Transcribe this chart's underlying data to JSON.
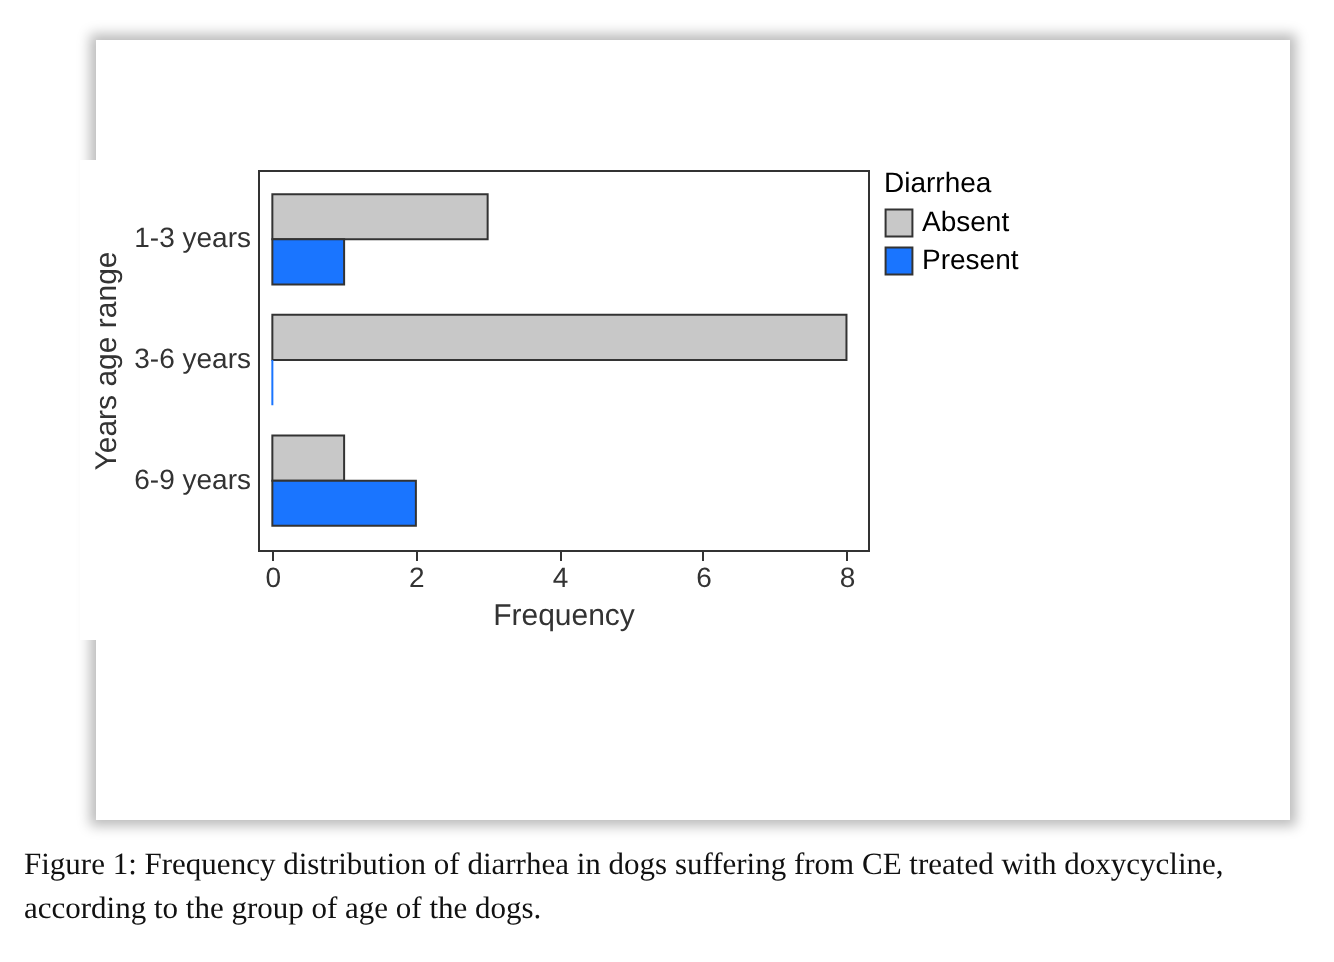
{
  "chart_data": {
    "type": "bar",
    "orientation": "horizontal",
    "ylabel": "Years age range",
    "xlabel": "Frequency",
    "legend_title": "Diarrhea",
    "legend": "right",
    "categories": [
      "1-3 years",
      "3-6 years",
      "6-9 years"
    ],
    "series": [
      {
        "name": "Absent",
        "color": "#c8c8c8",
        "values": [
          3,
          8,
          1
        ]
      },
      {
        "name": "Present",
        "color": "#1a75ff",
        "values": [
          1,
          0,
          2
        ]
      }
    ],
    "xlim": [
      -0.2,
      8.3
    ],
    "xticks": [
      0,
      2,
      4,
      6,
      8
    ],
    "grid": false,
    "annotations": [
      "Figure 1: Frequency distribution of diarrhea in dogs suffering from CE treated with doxycycline, according to the group of age of the dogs."
    ]
  }
}
